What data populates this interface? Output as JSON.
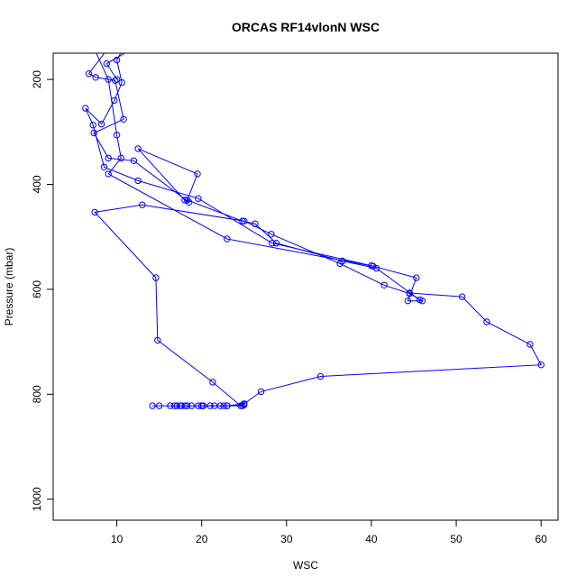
{
  "chart_data": {
    "type": "line",
    "title": "ORCAS RF14vlonN WSC",
    "xlabel": "WSC",
    "ylabel": "Pressure (mbar)",
    "xlim": [
      2.5,
      62
    ],
    "ylim": [
      1040,
      150
    ],
    "y_inverted": true,
    "grid": false,
    "legend": "none",
    "x_ticks": [
      10,
      20,
      30,
      40,
      50,
      60
    ],
    "y_ticks": [
      200,
      400,
      600,
      800,
      1000
    ],
    "series": [
      {
        "color": "#0000ff",
        "marker": "open-circle",
        "points": [
          [
            24.8,
            822
          ],
          [
            25.0,
            820
          ],
          [
            23.0,
            822
          ],
          [
            22.2,
            822
          ],
          [
            21.5,
            822
          ],
          [
            21.0,
            822
          ],
          [
            20.0,
            822
          ],
          [
            19.6,
            822
          ],
          [
            18.8,
            822
          ],
          [
            18.3,
            822
          ],
          [
            18.0,
            822
          ],
          [
            17.6,
            822
          ],
          [
            17.1,
            822
          ],
          [
            16.8,
            822
          ],
          [
            16.3,
            822
          ],
          [
            15.0,
            822
          ],
          [
            14.2,
            822
          ],
          [
            17.5,
            822
          ],
          [
            20.2,
            822
          ],
          [
            22.6,
            822
          ],
          [
            24.6,
            822
          ],
          [
            21.3,
            777
          ],
          [
            14.8,
            697
          ],
          [
            14.6,
            578
          ],
          [
            7.4,
            453
          ],
          [
            13.0,
            439
          ],
          [
            25.0,
            470
          ],
          [
            28.2,
            495
          ],
          [
            36.3,
            551
          ],
          [
            41.5,
            592
          ],
          [
            44.5,
            608
          ],
          [
            46.0,
            622
          ],
          [
            44.3,
            622
          ],
          [
            45.3,
            578
          ],
          [
            40.0,
            555
          ],
          [
            28.3,
            512
          ],
          [
            19.6,
            427
          ],
          [
            12.5,
            393
          ],
          [
            8.5,
            367
          ],
          [
            7.2,
            287
          ],
          [
            6.3,
            255
          ],
          [
            8.2,
            285
          ],
          [
            9.7,
            240
          ],
          [
            10.6,
            206
          ],
          [
            10.0,
            163
          ],
          [
            11.5,
            120
          ]
        ]
      },
      {
        "color": "#0000ff",
        "marker": "open-circle",
        "points": [
          [
            9.8,
            120
          ],
          [
            9.0,
            140
          ],
          [
            6.7,
            189
          ],
          [
            7.5,
            196
          ],
          [
            9.8,
            202
          ],
          [
            10.8,
            276
          ],
          [
            7.3,
            302
          ],
          [
            9.0,
            350
          ],
          [
            12.0,
            355
          ],
          [
            18.5,
            434
          ],
          [
            18.0,
            430
          ],
          [
            12.5,
            332
          ],
          [
            19.5,
            380
          ],
          [
            18.3,
            430
          ],
          [
            24.8,
            470
          ],
          [
            26.3,
            475
          ],
          [
            28.8,
            512
          ],
          [
            36.6,
            546
          ],
          [
            40.6,
            560
          ],
          [
            45.7,
            620
          ],
          [
            44.5,
            607
          ],
          [
            50.7,
            614
          ],
          [
            53.6,
            662
          ],
          [
            58.7,
            705
          ],
          [
            60.0,
            744
          ],
          [
            34.0,
            766
          ],
          [
            27.0,
            795
          ],
          [
            25.0,
            818
          ],
          [
            23.0,
            822
          ],
          [
            20.0,
            822
          ]
        ]
      },
      {
        "color": "#0000ff",
        "marker": "open-circle",
        "points": [
          [
            6.7,
            120
          ],
          [
            7.3,
            140
          ],
          [
            9.0,
            200
          ],
          [
            10.0,
            306
          ],
          [
            10.5,
            350
          ],
          [
            9.0,
            380
          ],
          [
            23.0,
            504
          ],
          [
            40.2,
            556
          ]
        ]
      },
      {
        "color": "#0000ff",
        "marker": "open-circle",
        "points": [
          [
            16.5,
            120
          ],
          [
            12.0,
            140
          ],
          [
            8.8,
            170
          ],
          [
            10.0,
            200
          ]
        ]
      }
    ]
  }
}
